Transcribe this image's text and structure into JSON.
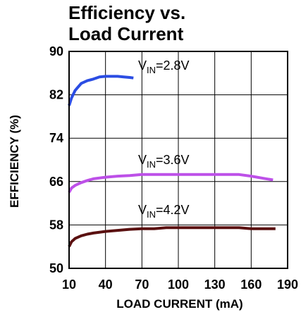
{
  "chart_data": {
    "type": "line",
    "title_lines": [
      "Efficiency vs.",
      "Load Current"
    ],
    "xlabel": "LOAD CURRENT (mA)",
    "ylabel": "EFFICIENCY (%)",
    "xlim": [
      10,
      190
    ],
    "ylim": [
      50,
      90
    ],
    "xticks": [
      10,
      40,
      70,
      100,
      130,
      160,
      190
    ],
    "yticks": [
      50,
      58,
      66,
      74,
      82,
      90
    ],
    "grid": true,
    "series": [
      {
        "name": "VIN=2.8V",
        "label_main": "V",
        "label_sub": "IN",
        "label_rest": "=2.8V",
        "color": "#2b4de3",
        "x": [
          10,
          12,
          15,
          20,
          25,
          30,
          35,
          40,
          45,
          50,
          55,
          60,
          63
        ],
        "y": [
          80.0,
          81.4,
          82.8,
          84.1,
          84.6,
          84.9,
          85.3,
          85.4,
          85.4,
          85.4,
          85.3,
          85.2,
          85.1
        ]
      },
      {
        "name": "VIN=3.6V",
        "label_main": "V",
        "label_sub": "IN",
        "label_rest": "=3.6V",
        "color": "#bd50e8",
        "x": [
          10,
          12,
          15,
          20,
          25,
          30,
          40,
          50,
          60,
          70,
          90,
          110,
          130,
          150,
          160,
          170,
          178
        ],
        "y": [
          64.0,
          64.8,
          65.3,
          65.8,
          66.2,
          66.5,
          66.8,
          67.0,
          67.1,
          67.3,
          67.3,
          67.3,
          67.3,
          67.3,
          67.0,
          66.6,
          66.3
        ]
      },
      {
        "name": "VIN=4.2V",
        "label_main": "V",
        "label_sub": "IN",
        "label_rest": "=4.2V",
        "color": "#5a1010",
        "x": [
          10,
          12,
          15,
          20,
          25,
          30,
          40,
          50,
          60,
          70,
          80,
          90,
          110,
          130,
          150,
          160,
          170,
          180
        ],
        "y": [
          54.0,
          54.9,
          55.5,
          56.0,
          56.3,
          56.5,
          56.8,
          57.0,
          57.2,
          57.3,
          57.3,
          57.5,
          57.5,
          57.5,
          57.5,
          57.3,
          57.3,
          57.3
        ]
      }
    ]
  }
}
